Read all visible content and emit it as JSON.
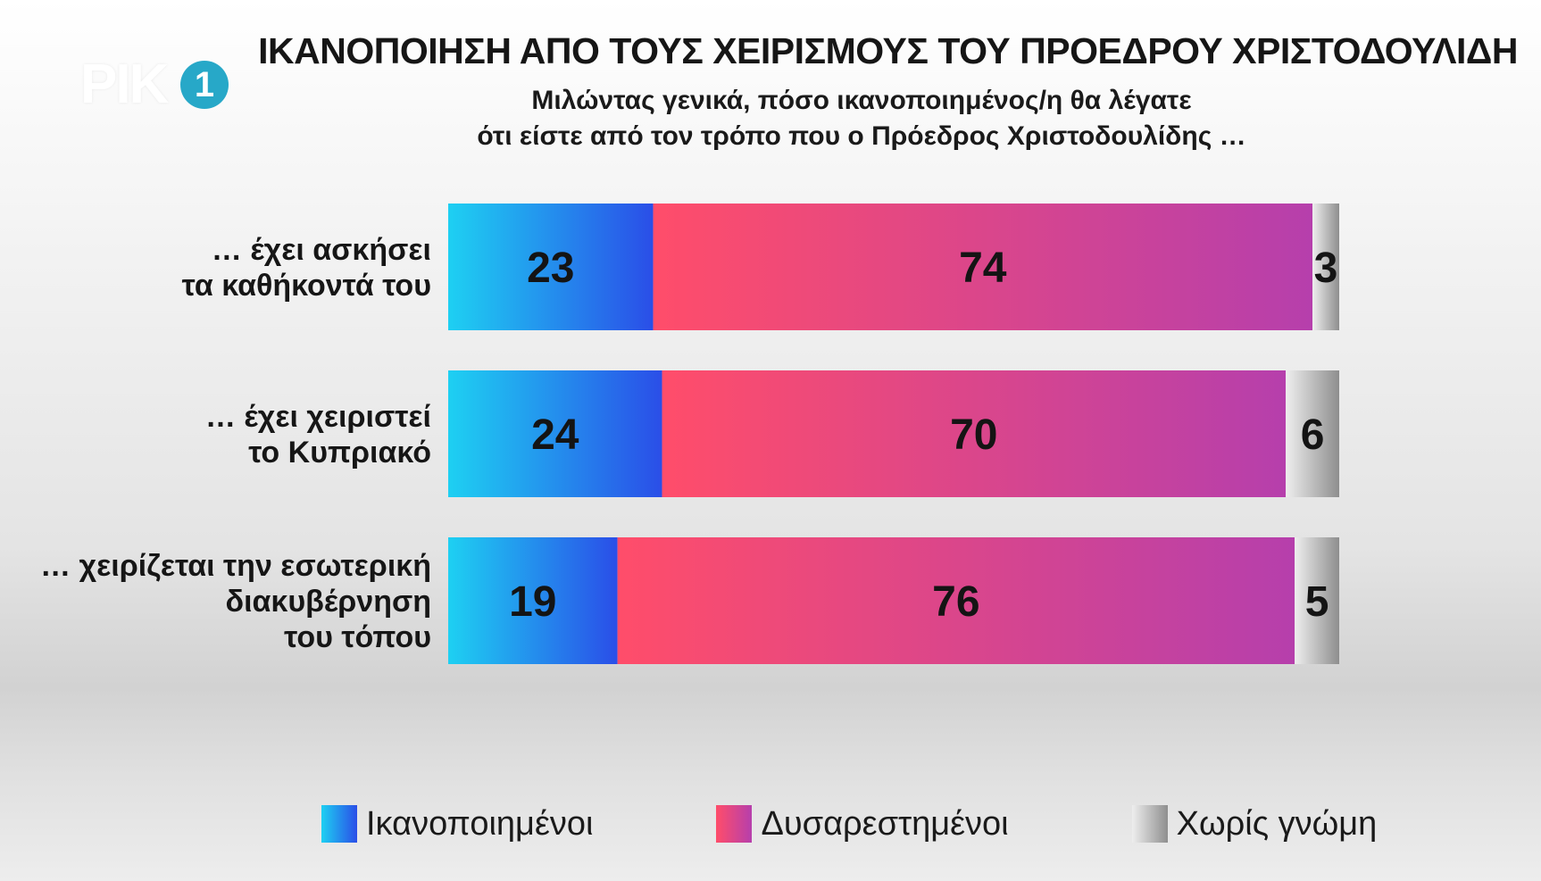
{
  "logo": {
    "text": "ΡΙΚ",
    "number": "1"
  },
  "chart_data": {
    "type": "bar",
    "orientation": "horizontal-stacked",
    "title": "ΙΚΑΝΟΠΟΙΗΣΗ ΑΠΟ ΤΟΥΣ ΧΕΙΡΙΣΜΟΥΣ ΤΟΥ ΠΡΟΕΔΡΟΥ ΧΡΙΣΤΟΔΟΥΛΙΔΗ",
    "subtitle": [
      "Μιλώντας γενικά, πόσο ικανοποιημένος/η θα λέγατε",
      "ότι είστε από τον τρόπο που ο Πρόεδρος Χριστοδουλίδης …"
    ],
    "categories": [
      [
        "… έχει ασκήσει",
        "τα καθήκοντά του"
      ],
      [
        "… έχει χειριστεί",
        "το Κυπριακό"
      ],
      [
        "… χειρίζεται την εσωτερική",
        "διακυβέρνηση",
        "του τόπου"
      ]
    ],
    "series": [
      {
        "name": "Ικανοποιημένοι",
        "values": [
          23,
          24,
          19
        ],
        "color": "#2a4ee8",
        "color_light": "#1ed0f2"
      },
      {
        "name": "Δυσαρεστημένοι",
        "values": [
          74,
          70,
          76
        ],
        "color": "#b63fac",
        "color_light": "#ff4d6a"
      },
      {
        "name": "Χωρίς γνώμη",
        "values": [
          3,
          6,
          5
        ],
        "color": "#8e8e8e",
        "color_light": "#eeeeee"
      }
    ],
    "xlim": [
      0,
      100
    ],
    "legend_position": "bottom",
    "grid": false
  }
}
